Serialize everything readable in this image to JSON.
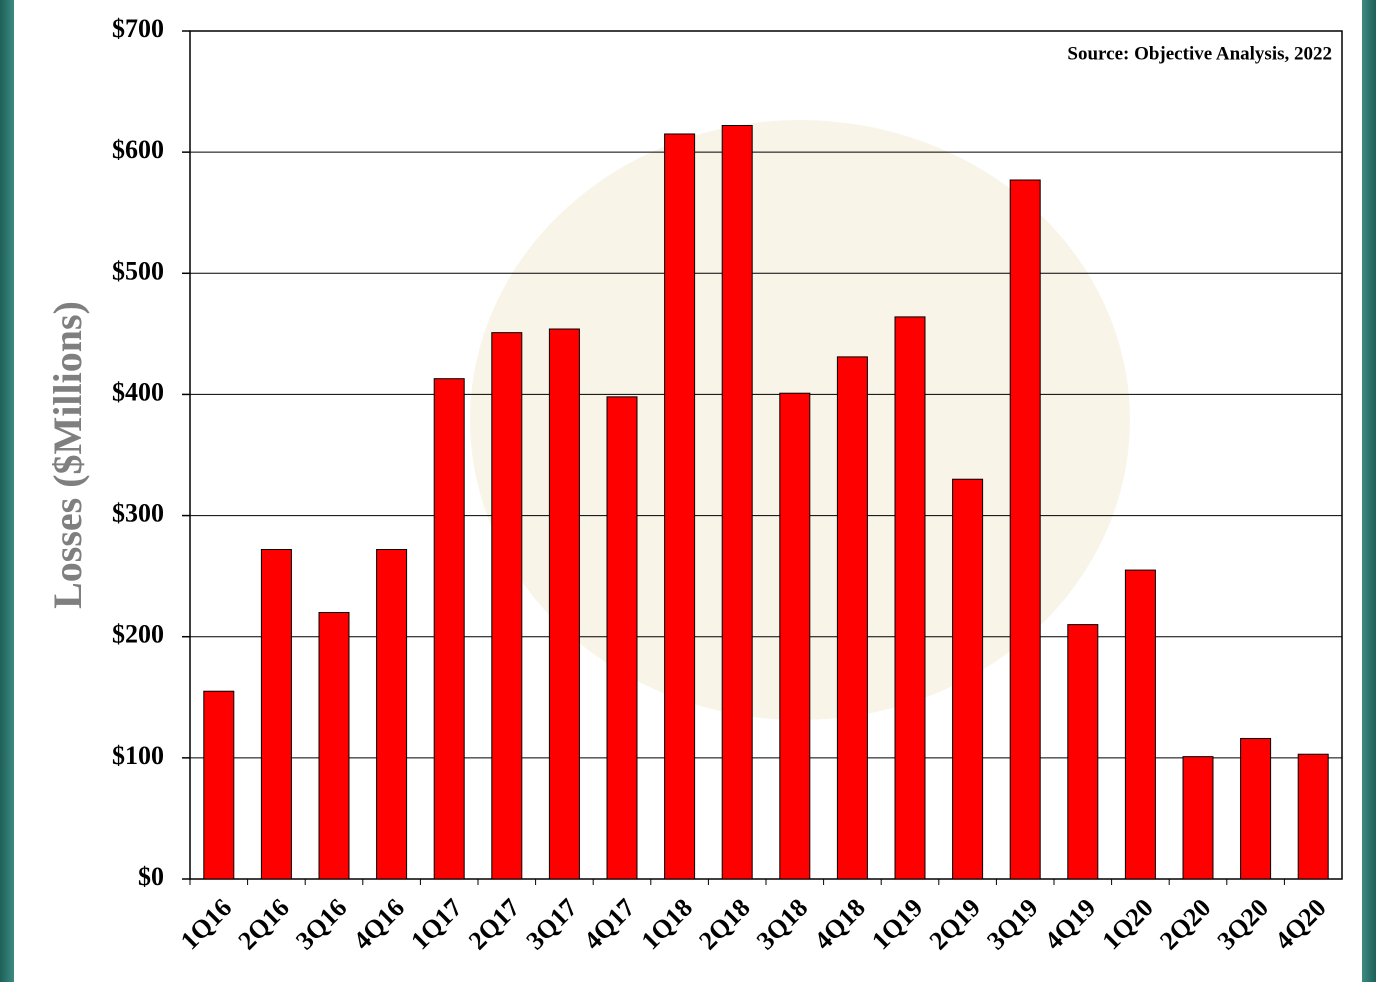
{
  "chart_data": {
    "type": "bar",
    "y_axis_label": "Losses ($Millions)",
    "annotation": "Source: Objective Analysis, 2022",
    "categories": [
      "1Q16",
      "2Q16",
      "3Q16",
      "4Q16",
      "1Q17",
      "2Q17",
      "3Q17",
      "4Q17",
      "1Q18",
      "2Q18",
      "3Q18",
      "4Q18",
      "1Q19",
      "2Q19",
      "3Q19",
      "4Q19",
      "1Q20",
      "2Q20",
      "3Q20",
      "4Q20"
    ],
    "values": [
      155,
      272,
      220,
      272,
      413,
      451,
      454,
      398,
      615,
      622,
      401,
      431,
      464,
      330,
      577,
      210,
      255,
      101,
      116,
      103
    ],
    "color": "#ff0000",
    "ylim": [
      0,
      700
    ],
    "yticks": [
      {
        "value": 0,
        "label": "$0"
      },
      {
        "value": 100,
        "label": "$100"
      },
      {
        "value": 200,
        "label": "$200"
      },
      {
        "value": 300,
        "label": "$300"
      },
      {
        "value": 400,
        "label": "$400"
      },
      {
        "value": 500,
        "label": "$500"
      },
      {
        "value": 600,
        "label": "$600"
      },
      {
        "value": 700,
        "label": "$700"
      }
    ],
    "grid": true
  }
}
